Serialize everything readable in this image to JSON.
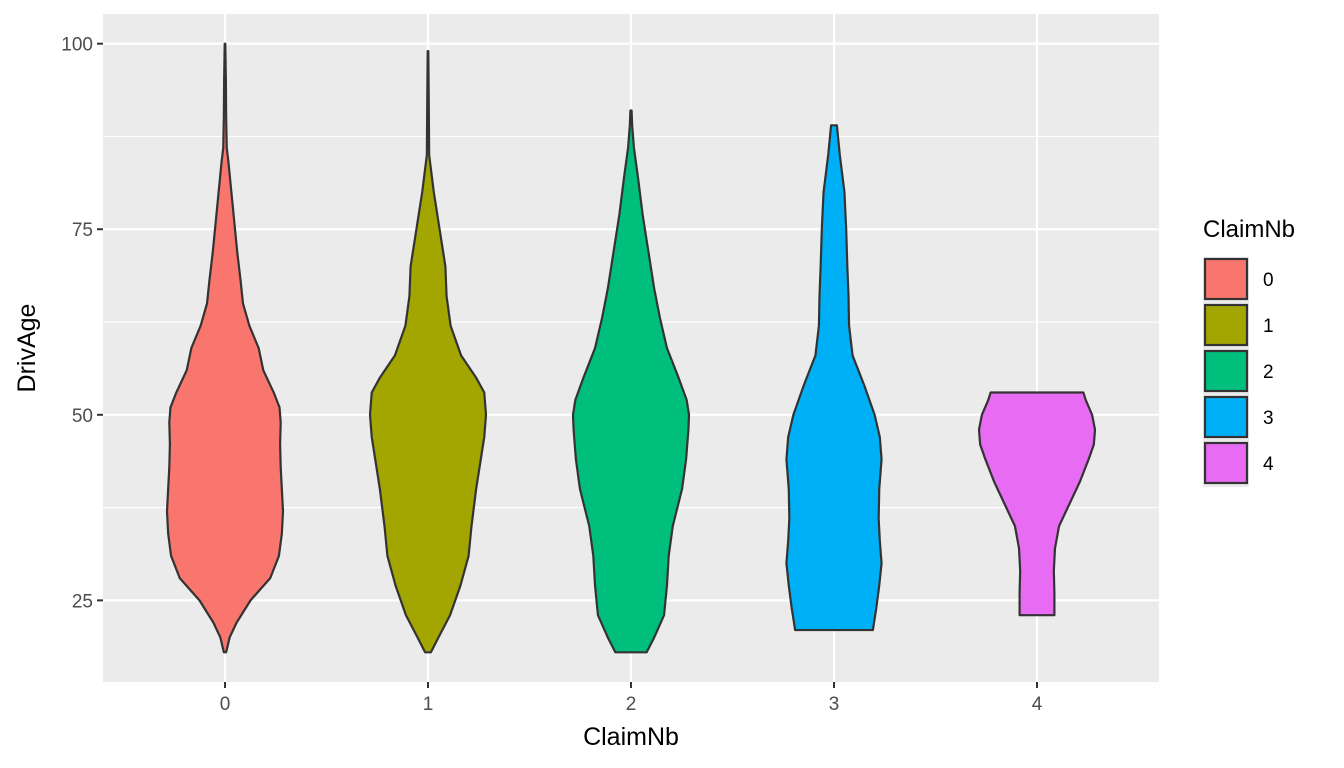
{
  "chart_data": {
    "type": "violin",
    "xlabel": "ClaimNb",
    "ylabel": "DrivAge",
    "categories": [
      "0",
      "1",
      "2",
      "3",
      "4"
    ],
    "ylim": [
      14,
      104
    ],
    "yticks": [
      25,
      50,
      75,
      100
    ],
    "grid": true,
    "legend": {
      "title": "ClaimNb",
      "placement": "right",
      "entries": [
        "0",
        "1",
        "2",
        "3",
        "4"
      ]
    },
    "colors": [
      "#F8766D",
      "#A3A500",
      "#00BF7D",
      "#00B0F6",
      "#E76BF3"
    ],
    "series": [
      {
        "category": "0",
        "min": 18,
        "max": 100,
        "density": [
          [
            18,
            0.02
          ],
          [
            20,
            0.08
          ],
          [
            22,
            0.2
          ],
          [
            25,
            0.44
          ],
          [
            28,
            0.78
          ],
          [
            31,
            0.93
          ],
          [
            34,
            0.98
          ],
          [
            37,
            1.0
          ],
          [
            40,
            0.98
          ],
          [
            43,
            0.96
          ],
          [
            46,
            0.95
          ],
          [
            49,
            0.96
          ],
          [
            51,
            0.94
          ],
          [
            53,
            0.84
          ],
          [
            56,
            0.66
          ],
          [
            59,
            0.58
          ],
          [
            62,
            0.42
          ],
          [
            65,
            0.31
          ],
          [
            68,
            0.27
          ],
          [
            72,
            0.21
          ],
          [
            76,
            0.16
          ],
          [
            80,
            0.11
          ],
          [
            84,
            0.06
          ],
          [
            86,
            0.03
          ],
          [
            90,
            0.02
          ],
          [
            95,
            0.015
          ],
          [
            100,
            0.005
          ]
        ]
      },
      {
        "category": "1",
        "min": 18,
        "max": 99,
        "density": [
          [
            18,
            0.05
          ],
          [
            20,
            0.18
          ],
          [
            23,
            0.38
          ],
          [
            27,
            0.56
          ],
          [
            31,
            0.7
          ],
          [
            35,
            0.75
          ],
          [
            40,
            0.83
          ],
          [
            44,
            0.91
          ],
          [
            47,
            0.97
          ],
          [
            50,
            1.0
          ],
          [
            53,
            0.97
          ],
          [
            55,
            0.83
          ],
          [
            58,
            0.57
          ],
          [
            62,
            0.39
          ],
          [
            66,
            0.32
          ],
          [
            70,
            0.3
          ],
          [
            75,
            0.2
          ],
          [
            80,
            0.1
          ],
          [
            85,
            0.02
          ],
          [
            90,
            0.015
          ],
          [
            95,
            0.01
          ],
          [
            99,
            0.005
          ]
        ]
      },
      {
        "category": "2",
        "min": 18,
        "max": 91,
        "density": [
          [
            18,
            0.27
          ],
          [
            20,
            0.4
          ],
          [
            23,
            0.57
          ],
          [
            27,
            0.62
          ],
          [
            31,
            0.65
          ],
          [
            35,
            0.72
          ],
          [
            40,
            0.88
          ],
          [
            44,
            0.95
          ],
          [
            48,
            0.99
          ],
          [
            50,
            1.0
          ],
          [
            52,
            0.96
          ],
          [
            55,
            0.82
          ],
          [
            59,
            0.62
          ],
          [
            63,
            0.5
          ],
          [
            67,
            0.4
          ],
          [
            72,
            0.3
          ],
          [
            77,
            0.2
          ],
          [
            82,
            0.12
          ],
          [
            86,
            0.05
          ],
          [
            89,
            0.02
          ],
          [
            91,
            0.01
          ]
        ]
      },
      {
        "category": "3",
        "min": 21,
        "max": 89,
        "density": [
          [
            21,
            0.67
          ],
          [
            24,
            0.73
          ],
          [
            27,
            0.78
          ],
          [
            30,
            0.82
          ],
          [
            33,
            0.79
          ],
          [
            36,
            0.77
          ],
          [
            40,
            0.78
          ],
          [
            44,
            0.82
          ],
          [
            47,
            0.79
          ],
          [
            50,
            0.7
          ],
          [
            54,
            0.52
          ],
          [
            58,
            0.32
          ],
          [
            62,
            0.26
          ],
          [
            66,
            0.25
          ],
          [
            70,
            0.23
          ],
          [
            75,
            0.21
          ],
          [
            80,
            0.18
          ],
          [
            85,
            0.1
          ],
          [
            89,
            0.05
          ]
        ]
      },
      {
        "category": "4",
        "min": 23,
        "max": 53,
        "density": [
          [
            23,
            0.3
          ],
          [
            26,
            0.3
          ],
          [
            29,
            0.29
          ],
          [
            32,
            0.31
          ],
          [
            35,
            0.38
          ],
          [
            38,
            0.56
          ],
          [
            41,
            0.74
          ],
          [
            44,
            0.89
          ],
          [
            46,
            0.98
          ],
          [
            48,
            1.0
          ],
          [
            50,
            0.95
          ],
          [
            52,
            0.84
          ],
          [
            53,
            0.8
          ]
        ]
      }
    ]
  }
}
